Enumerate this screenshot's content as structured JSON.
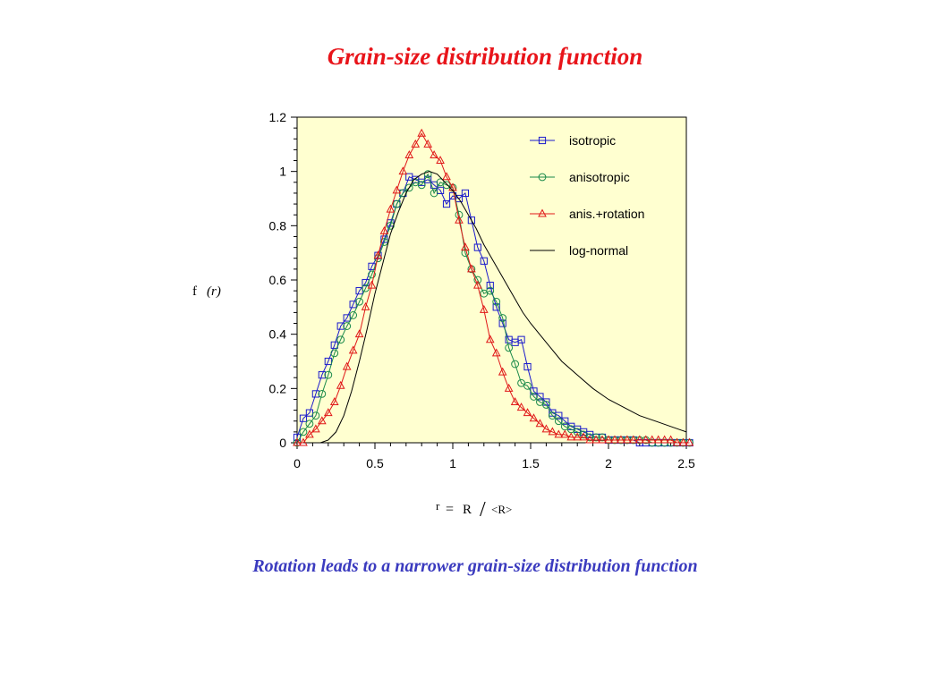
{
  "title": "Grain-size distribution function",
  "caption": "Rotation leads to a narrower grain-size distribution function",
  "chart_data": {
    "type": "line",
    "ylabel": {
      "main": "f",
      "arg": "(r)"
    },
    "xlabel": {
      "r": "r",
      "eq": "=",
      "R": "R",
      "slash": "/",
      "mean": "<R>"
    },
    "xlim": [
      0,
      2.5
    ],
    "ylim": [
      0,
      1.2
    ],
    "xticks": [
      "0",
      "0.5",
      "1",
      "1.5",
      "2",
      "2.5"
    ],
    "yticks": [
      "0",
      "0.2",
      "0.4",
      "0.6",
      "0.8",
      "1",
      "1.2"
    ],
    "plot_background": "#ffffd0",
    "legend_position": "top-right",
    "x": [
      0.0,
      0.04,
      0.08,
      0.12,
      0.16,
      0.2,
      0.24,
      0.28,
      0.32,
      0.36,
      0.4,
      0.44,
      0.48,
      0.52,
      0.56,
      0.6,
      0.64,
      0.68,
      0.72,
      0.76,
      0.8,
      0.84,
      0.88,
      0.92,
      0.96,
      1.0,
      1.04,
      1.08,
      1.12,
      1.16,
      1.2,
      1.24,
      1.28,
      1.32,
      1.36,
      1.4,
      1.44,
      1.48,
      1.52,
      1.56,
      1.6,
      1.64,
      1.68,
      1.72,
      1.76,
      1.8,
      1.84,
      1.88,
      1.92,
      1.96,
      2.0,
      2.04,
      2.08,
      2.12,
      2.16,
      2.2,
      2.24,
      2.28,
      2.32,
      2.36,
      2.4,
      2.44,
      2.48,
      2.52
    ],
    "series": [
      {
        "name": "isotropic",
        "marker": "square",
        "color": "#1a1acc",
        "values": [
          0.02,
          0.09,
          0.11,
          0.18,
          0.25,
          0.3,
          0.36,
          0.43,
          0.46,
          0.51,
          0.56,
          0.59,
          0.65,
          0.69,
          0.75,
          0.81,
          0.88,
          0.92,
          0.98,
          0.97,
          0.96,
          0.97,
          0.95,
          0.93,
          0.88,
          0.91,
          0.9,
          0.92,
          0.82,
          0.72,
          0.67,
          0.58,
          0.5,
          0.44,
          0.38,
          0.37,
          0.38,
          0.28,
          0.19,
          0.17,
          0.15,
          0.11,
          0.1,
          0.08,
          0.06,
          0.05,
          0.04,
          0.03,
          0.02,
          0.02,
          0.01,
          0.01,
          0.01,
          0.01,
          0.01,
          0.0,
          0.0,
          0.0,
          0.0,
          0.0,
          0.0,
          0.0,
          0.0,
          0.0
        ]
      },
      {
        "name": "anisotropic",
        "marker": "circle",
        "color": "#1a8a4a",
        "values": [
          0.0,
          0.04,
          0.07,
          0.1,
          0.18,
          0.25,
          0.33,
          0.38,
          0.43,
          0.47,
          0.52,
          0.57,
          0.62,
          0.68,
          0.74,
          0.8,
          0.88,
          0.92,
          0.94,
          0.96,
          0.95,
          0.99,
          0.92,
          0.96,
          0.95,
          0.94,
          0.84,
          0.7,
          0.64,
          0.6,
          0.55,
          0.56,
          0.52,
          0.46,
          0.35,
          0.29,
          0.22,
          0.21,
          0.17,
          0.15,
          0.14,
          0.1,
          0.08,
          0.06,
          0.05,
          0.04,
          0.03,
          0.02,
          0.02,
          0.02,
          0.01,
          0.01,
          0.01,
          0.01,
          0.01,
          0.01,
          0.01,
          0.0,
          0.0,
          0.0,
          0.0,
          0.0,
          0.0,
          0.0
        ]
      },
      {
        "name": "anis.+rotation",
        "marker": "triangle",
        "color": "#e01818",
        "values": [
          0.0,
          0.0,
          0.03,
          0.05,
          0.08,
          0.11,
          0.15,
          0.21,
          0.28,
          0.34,
          0.4,
          0.5,
          0.58,
          0.69,
          0.78,
          0.86,
          0.93,
          1.0,
          1.06,
          1.1,
          1.14,
          1.1,
          1.06,
          1.04,
          0.98,
          0.94,
          0.82,
          0.72,
          0.64,
          0.58,
          0.49,
          0.38,
          0.33,
          0.26,
          0.2,
          0.15,
          0.13,
          0.11,
          0.09,
          0.07,
          0.05,
          0.04,
          0.03,
          0.03,
          0.02,
          0.02,
          0.02,
          0.01,
          0.01,
          0.01,
          0.01,
          0.01,
          0.01,
          0.01,
          0.01,
          0.01,
          0.01,
          0.01,
          0.01,
          0.01,
          0.01,
          0.0,
          0.0,
          0.0
        ]
      },
      {
        "name": "log-normal",
        "marker": "none",
        "color": "#000000",
        "x": [
          0.15,
          0.2,
          0.25,
          0.3,
          0.35,
          0.4,
          0.45,
          0.5,
          0.55,
          0.6,
          0.65,
          0.7,
          0.75,
          0.8,
          0.85,
          0.9,
          0.95,
          1.0,
          1.05,
          1.1,
          1.15,
          1.2,
          1.25,
          1.3,
          1.35,
          1.4,
          1.45,
          1.5,
          1.6,
          1.7,
          1.8,
          1.9,
          2.0,
          2.1,
          2.2,
          2.3,
          2.4,
          2.5
        ],
        "values": [
          0.0,
          0.01,
          0.04,
          0.1,
          0.19,
          0.3,
          0.42,
          0.55,
          0.66,
          0.77,
          0.85,
          0.92,
          0.97,
          0.99,
          1.0,
          0.99,
          0.96,
          0.93,
          0.89,
          0.84,
          0.79,
          0.73,
          0.68,
          0.63,
          0.58,
          0.53,
          0.48,
          0.44,
          0.37,
          0.3,
          0.25,
          0.2,
          0.16,
          0.13,
          0.1,
          0.08,
          0.06,
          0.04
        ]
      }
    ]
  }
}
